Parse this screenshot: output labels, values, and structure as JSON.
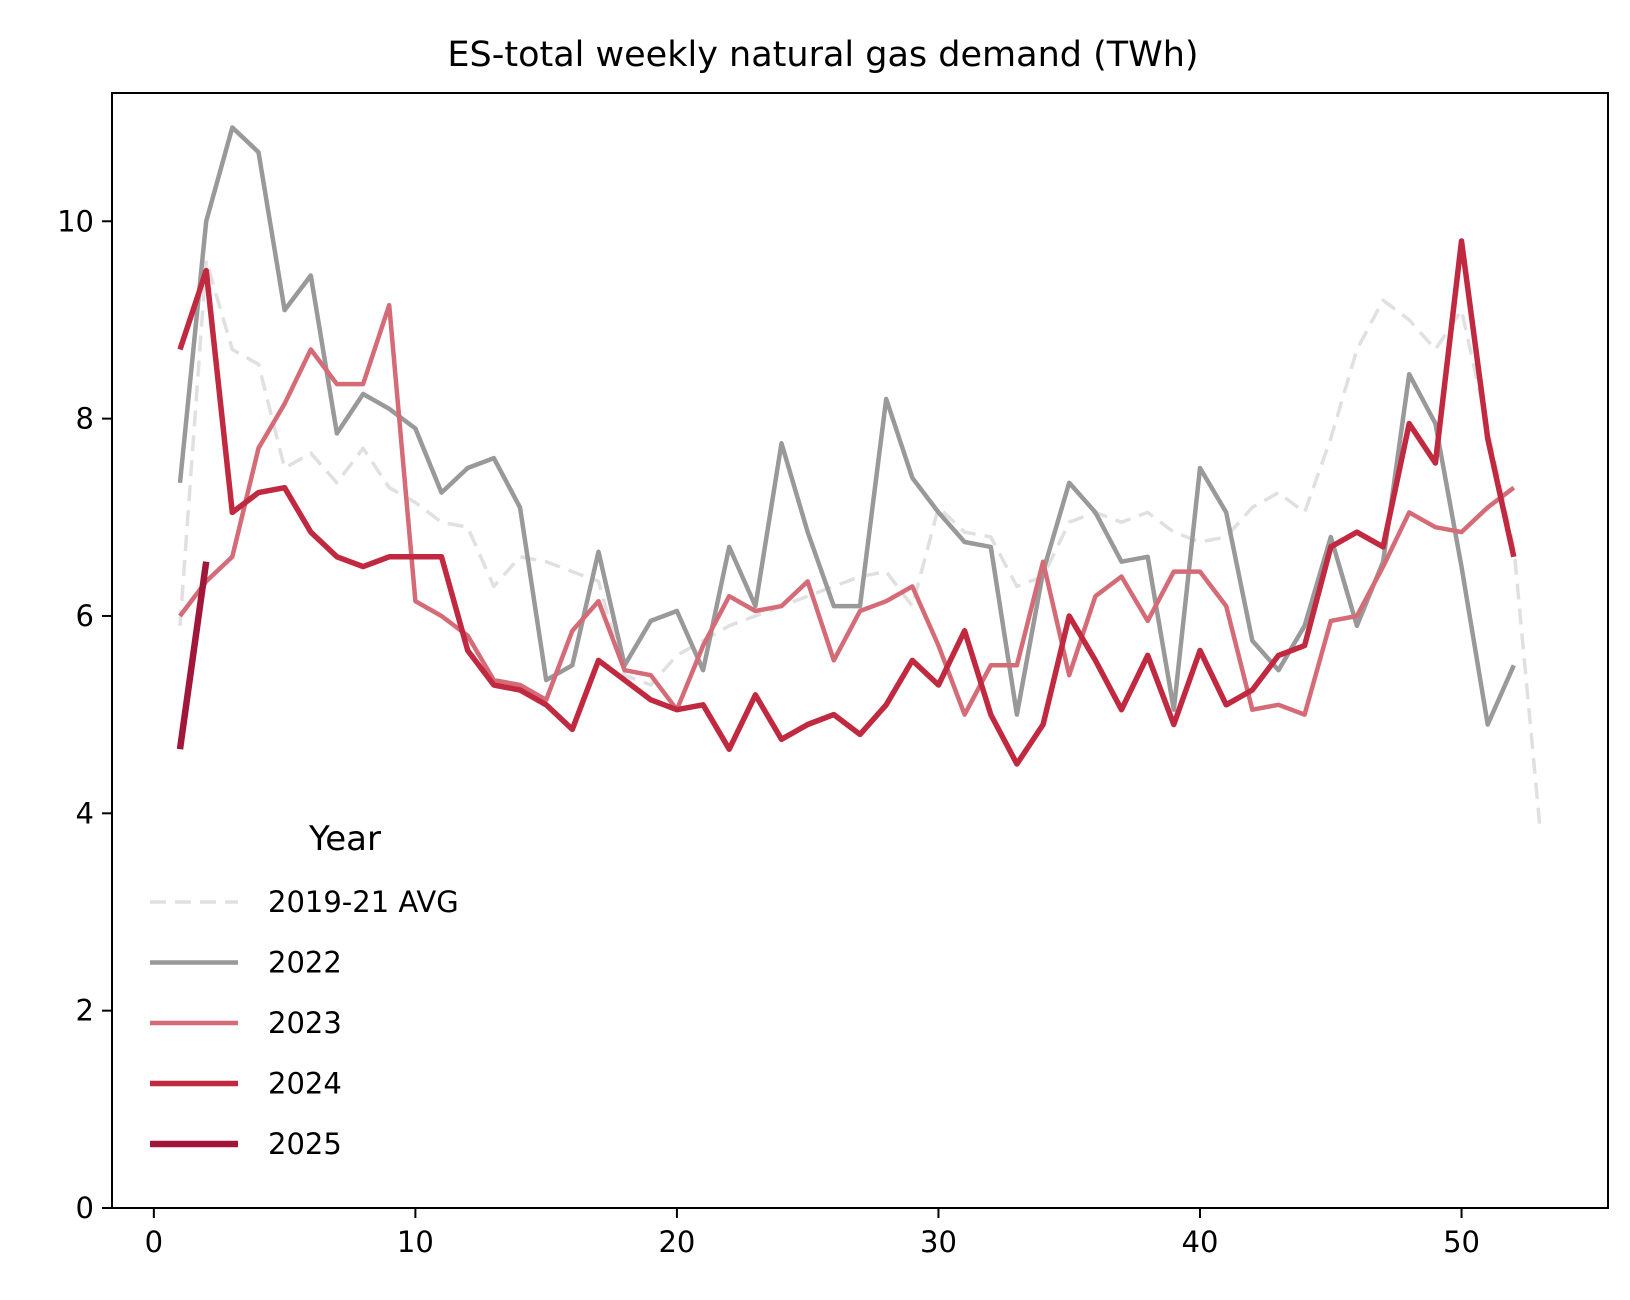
{
  "chart_data": {
    "type": "line",
    "title": "ES-total weekly natural gas demand (TWh)",
    "xlabel": "",
    "ylabel": "",
    "xlim": [
      -1.6,
      55.6
    ],
    "ylim": [
      0,
      11.3
    ],
    "xticks": [
      0,
      10,
      20,
      30,
      40,
      50
    ],
    "yticks": [
      0,
      2,
      4,
      6,
      8,
      10
    ],
    "grid": false,
    "legend": {
      "title": "Year",
      "position": "lower-left"
    },
    "series": [
      {
        "name": "2019-21 AVG",
        "color": "#e0e0e0",
        "style": "dashed",
        "x": [
          1,
          2,
          3,
          4,
          5,
          6,
          7,
          8,
          9,
          10,
          11,
          12,
          13,
          14,
          15,
          16,
          17,
          18,
          19,
          20,
          21,
          22,
          23,
          24,
          25,
          26,
          27,
          28,
          29,
          30,
          31,
          32,
          33,
          34,
          35,
          36,
          37,
          38,
          39,
          40,
          41,
          42,
          43,
          44,
          45,
          46,
          47,
          48,
          49,
          50,
          51,
          52,
          53
        ],
        "y": [
          5.9,
          9.6,
          8.7,
          8.55,
          7.5,
          7.65,
          7.35,
          7.7,
          7.3,
          7.15,
          6.95,
          6.9,
          6.3,
          6.6,
          6.55,
          6.45,
          6.35,
          5.4,
          5.3,
          5.6,
          5.75,
          5.9,
          6.0,
          6.1,
          6.2,
          6.3,
          6.4,
          6.45,
          6.1,
          7.1,
          6.85,
          6.8,
          6.3,
          6.4,
          6.95,
          7.05,
          6.95,
          7.05,
          6.85,
          6.75,
          6.8,
          7.1,
          7.25,
          7.05,
          7.8,
          8.7,
          9.2,
          9.0,
          8.7,
          9.1,
          7.9,
          6.7,
          3.85
        ]
      },
      {
        "name": "2022",
        "color": "#999999",
        "style": "solid",
        "x": [
          1,
          2,
          3,
          4,
          5,
          6,
          7,
          8,
          9,
          10,
          11,
          12,
          13,
          14,
          15,
          16,
          17,
          18,
          19,
          20,
          21,
          22,
          23,
          24,
          25,
          26,
          27,
          28,
          29,
          30,
          31,
          32,
          33,
          34,
          35,
          36,
          37,
          38,
          39,
          40,
          41,
          42,
          43,
          44,
          45,
          46,
          47,
          48,
          49,
          50,
          51,
          52
        ],
        "y": [
          7.35,
          10.0,
          10.95,
          10.7,
          9.1,
          9.45,
          7.85,
          8.25,
          8.1,
          7.9,
          7.25,
          7.5,
          7.6,
          7.1,
          5.35,
          5.5,
          6.65,
          5.5,
          5.95,
          6.05,
          5.45,
          6.7,
          6.1,
          7.75,
          6.85,
          6.1,
          6.1,
          8.2,
          7.4,
          7.05,
          6.75,
          6.7,
          5.0,
          6.45,
          7.35,
          7.05,
          6.55,
          6.6,
          5.05,
          7.5,
          7.05,
          5.75,
          5.45,
          5.9,
          6.8,
          5.9,
          6.55,
          8.45,
          7.95,
          6.5,
          4.9,
          5.5
        ]
      },
      {
        "name": "2023",
        "color": "#d46b77",
        "style": "solid",
        "x": [
          1,
          2,
          3,
          4,
          5,
          6,
          7,
          8,
          9,
          10,
          11,
          12,
          13,
          14,
          15,
          16,
          17,
          18,
          19,
          20,
          21,
          22,
          23,
          24,
          25,
          26,
          27,
          28,
          29,
          30,
          31,
          32,
          33,
          34,
          35,
          36,
          37,
          38,
          39,
          40,
          41,
          42,
          43,
          44,
          45,
          46,
          47,
          48,
          49,
          50,
          51,
          52
        ],
        "y": [
          6.0,
          6.35,
          6.6,
          7.7,
          8.15,
          8.7,
          8.35,
          8.35,
          9.15,
          6.15,
          6.0,
          5.8,
          5.35,
          5.3,
          5.15,
          5.85,
          6.15,
          5.45,
          5.4,
          5.05,
          5.7,
          6.2,
          6.05,
          6.1,
          6.35,
          5.55,
          6.05,
          6.15,
          6.3,
          5.7,
          5.0,
          5.5,
          5.5,
          6.55,
          5.4,
          6.2,
          6.4,
          5.95,
          6.45,
          6.45,
          6.1,
          5.05,
          5.1,
          5.0,
          5.95,
          6.0,
          6.5,
          7.05,
          6.9,
          6.85,
          7.1,
          7.3
        ]
      },
      {
        "name": "2024",
        "color": "#c0293f",
        "style": "solid",
        "x": [
          1,
          2,
          3,
          4,
          5,
          6,
          7,
          8,
          9,
          10,
          11,
          12,
          13,
          14,
          15,
          16,
          17,
          18,
          19,
          20,
          21,
          22,
          23,
          24,
          25,
          26,
          27,
          28,
          29,
          30,
          31,
          32,
          33,
          34,
          35,
          36,
          37,
          38,
          39,
          40,
          41,
          42,
          43,
          44,
          45,
          46,
          47,
          48,
          49,
          50,
          51,
          52
        ],
        "y": [
          8.7,
          9.5,
          7.05,
          7.25,
          7.3,
          6.85,
          6.6,
          6.5,
          6.6,
          6.6,
          6.6,
          5.65,
          5.3,
          5.25,
          5.1,
          4.85,
          5.55,
          5.35,
          5.15,
          5.05,
          5.1,
          4.65,
          5.2,
          4.75,
          4.9,
          5.0,
          4.8,
          5.1,
          5.55,
          5.3,
          5.85,
          5.0,
          4.5,
          4.9,
          6.0,
          5.55,
          5.05,
          5.6,
          4.9,
          5.65,
          5.1,
          5.25,
          5.6,
          5.7,
          6.7,
          6.85,
          6.7,
          7.95,
          7.55,
          9.8,
          7.8,
          6.6
        ]
      },
      {
        "name": "2025",
        "color": "#a0173a",
        "style": "solid",
        "x": [
          1,
          2
        ],
        "y": [
          4.65,
          6.55
        ]
      }
    ]
  }
}
